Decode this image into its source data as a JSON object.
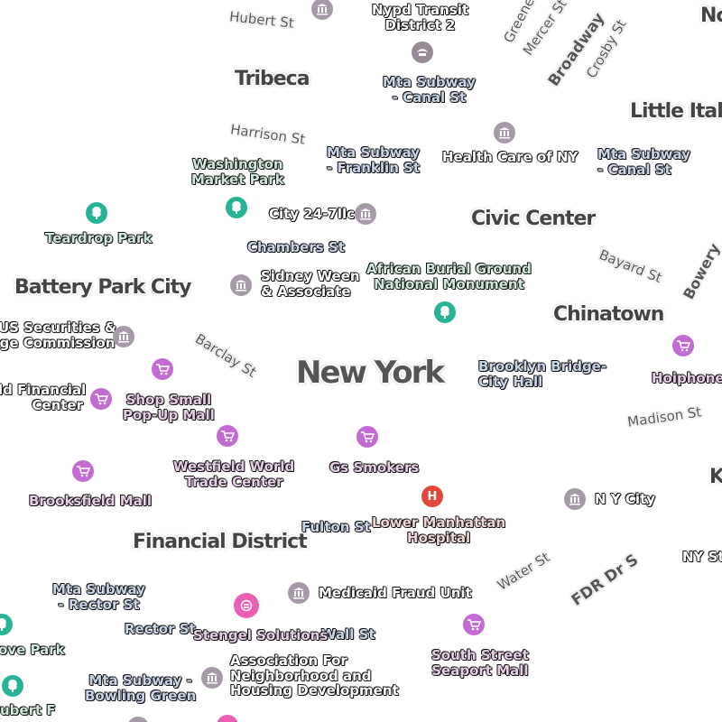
{
  "map": {
    "colors": {
      "government": "#a79aa8",
      "park": "#26b397",
      "shop": "#c26bd3",
      "hospital": "#e1483b",
      "transit": "#988a95",
      "service": "#ea5fb4"
    },
    "areas": {
      "tribeca": "Tribeca",
      "little_italy": "Little Italy",
      "civic_center": "Civic Center",
      "battery_park_city": "Battery Park City",
      "chinatown": "Chinatown",
      "financial_district": "Financial District",
      "new_york": "New York",
      "partial_top": "Nc",
      "partial_right": "K"
    },
    "streets": {
      "hubert": "Hubert St",
      "harrison": "Harrison St",
      "greene": "Greene",
      "mercer": "Mercer St",
      "broadway": "Broadway",
      "crosby": "Crosby St",
      "chambers": "Chambers St",
      "bayard": "Bayard St",
      "bowery": "Bowery",
      "barclay": "Barclay St",
      "madison": "Madison St",
      "fulton": "Fulton St",
      "water": "Water St",
      "fdr": "FDR Dr S",
      "rector": "Rector St",
      "wall": "Wall St",
      "ny_state": "NY Sta",
      "hubert_bottom": "ubert F"
    },
    "pois": {
      "nypd_transit": "Nypd Transit\nDistrict 2",
      "mta_canal_1": "Mta Subway\n- Canal St",
      "mta_franklin": "Mta Subway\n- Franklin St",
      "health_care": "Health Care of NY",
      "mta_canal_2": "Mta Subway\n- Canal St",
      "washington_market": "Washington\nMarket Park",
      "teardrop": "Teardrop Park",
      "city_247": "City 24-7llc",
      "sidney_ween": "Sidney Ween\n& Associate",
      "african_burial": "African Burial Ground\nNational Monument",
      "us_securities": "US Securities &\nge Commission",
      "world_financial": "ld Financial\nCenter",
      "shop_small": "Shop Small\nPop-Up Mall",
      "brooklyn_bridge": "Brooklyn Bridge-\nCity Hall",
      "hoiphone": "Hoiphone",
      "westfield": "Westfield World\nTrade Center",
      "gs_smokers": "Gs Smokers",
      "brooksfield": "Brooksfield Mall",
      "ny_city": "N Y City",
      "lower_manhattan": "Lower Manhattan\nHospital",
      "mta_rector": "Mta Subway\n- Rector St",
      "medicaid": "Medicaid Fraud Unit",
      "stengel": "Stengel Solutions",
      "south_street": "South Street\nSeaport Mall",
      "association": "Association For\nNeighborhood and\nHousing Development",
      "mta_bowling": "Mta Subway -\nBowling Green",
      "grove_park": "ove Park"
    },
    "icons": {
      "hospital_glyph": "H"
    }
  }
}
